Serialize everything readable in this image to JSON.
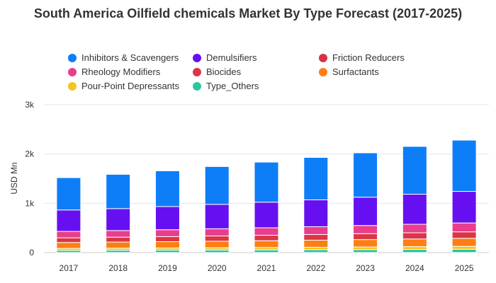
{
  "chart_data": {
    "type": "bar",
    "stacked": true,
    "title": "South America Oilfield chemicals Market By Type Forecast (2017-2025)",
    "xlabel": "",
    "ylabel": "USD Mn",
    "ylim": [
      0,
      3000
    ],
    "yticks": [
      0,
      1000,
      2000,
      3000
    ],
    "ytick_labels": [
      "0",
      "1k",
      "2k",
      "3k"
    ],
    "grid": true,
    "legend_position": "top",
    "categories": [
      "2017",
      "2018",
      "2019",
      "2020",
      "2021",
      "2022",
      "2023",
      "2024",
      "2025"
    ],
    "series": [
      {
        "name": "Type_Others",
        "color": "#2ec4a0",
        "values": [
          45,
          48,
          50,
          52,
          55,
          58,
          61,
          64,
          68
        ]
      },
      {
        "name": "Pour-Point Depressants",
        "color": "#f5c518",
        "values": [
          40,
          42,
          44,
          46,
          48,
          50,
          53,
          56,
          59
        ]
      },
      {
        "name": "Surfactants",
        "color": "#fd7e14",
        "values": [
          120,
          124,
          128,
          133,
          138,
          144,
          150,
          156,
          162
        ]
      },
      {
        "name": "Biocides",
        "color": "#dc3545",
        "values": [
          95,
          98,
          102,
          106,
          110,
          115,
          120,
          126,
          132
        ]
      },
      {
        "name": "Rheology Modifiers",
        "color": "#e83e8c",
        "values": [
          130,
          135,
          140,
          146,
          152,
          158,
          165,
          172,
          180
        ]
      },
      {
        "name": "Friction Reducers",
        "color": "#d63348",
        "values": [
          0,
          0,
          0,
          0,
          0,
          0,
          0,
          0,
          0
        ]
      },
      {
        "name": "Demulsifiers",
        "color": "#6610f2",
        "values": [
          435,
          445,
          470,
          495,
          520,
          545,
          575,
          610,
          640
        ]
      },
      {
        "name": "Inhibitors & Scavengers",
        "color": "#0d7ef8",
        "values": [
          655,
          695,
          725,
          768,
          812,
          860,
          900,
          970,
          1040
        ]
      }
    ]
  },
  "legend": [
    {
      "label": "Inhibitors & Scavengers",
      "color": "#0d7ef8"
    },
    {
      "label": "Demulsifiers",
      "color": "#6610f2"
    },
    {
      "label": "Friction Reducers",
      "color": "#d63348"
    },
    {
      "label": "Rheology Modifiers",
      "color": "#e83e8c"
    },
    {
      "label": "Biocides",
      "color": "#dc3545"
    },
    {
      "label": "Surfactants",
      "color": "#fd7e14"
    },
    {
      "label": "Pour-Point Depressants",
      "color": "#f5c518"
    },
    {
      "label": "Type_Others",
      "color": "#2ec4a0"
    }
  ]
}
